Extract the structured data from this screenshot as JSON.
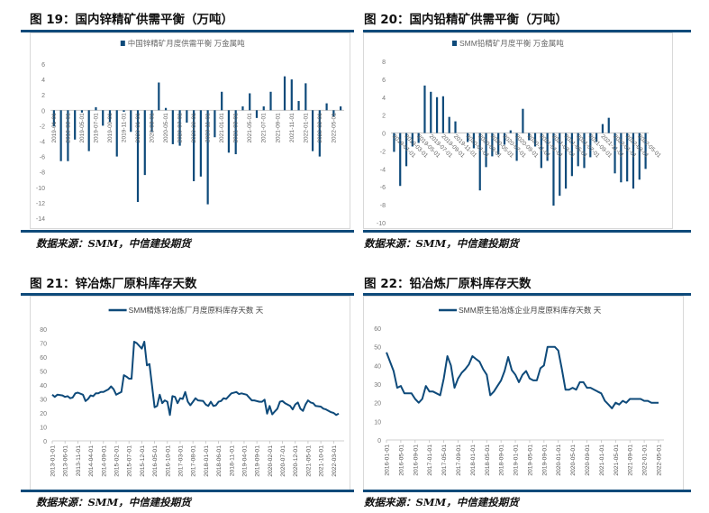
{
  "colors": {
    "series": "#0e4a7a",
    "rule": "#0e4a7a",
    "axis_text": "#777777",
    "legend_text": "#666666"
  },
  "figures": [
    {
      "title": "图 19：国内锌精矿供需平衡（万吨）",
      "source": "数据来源：SMM，中信建投期货"
    },
    {
      "title": "图 20：国内铅精矿供需平衡（万吨）",
      "source": "数据来源：SMM，中信建投期货"
    },
    {
      "title": "图 21：锌冶炼厂原料库存天数",
      "source": "数据来源：SMM，中信建投期货"
    },
    {
      "title": "图 22：铅冶炼厂原料库存天数",
      "source": "数据来源：SMM，中信建投期货"
    }
  ],
  "chart_data": [
    {
      "type": "bar",
      "legend": "中国锌精矿月度供需平衡 万金属吨",
      "ylim": [
        -14,
        6
      ],
      "yticks": [
        6,
        4,
        2,
        0,
        -2,
        -4,
        -6,
        -8,
        -10,
        -12,
        -14
      ],
      "grid": false,
      "categories": [
        "2019-01-01",
        "2019-02-01",
        "2019-03-01",
        "2019-04-01",
        "2019-05-01",
        "2019-06-01",
        "2019-07-01",
        "2019-08-01",
        "2019-09-01",
        "2019-10-01",
        "2019-11-01",
        "2019-12-01",
        "2020-01-01",
        "2020-02-01",
        "2020-03-01",
        "2020-04-01",
        "2020-05-01",
        "2020-06-01",
        "2020-07-01",
        "2020-08-01",
        "2020-09-01",
        "2020-10-01",
        "2020-11-01",
        "2020-12-01",
        "2021-01-01",
        "2021-02-01",
        "2021-03-01",
        "2021-04-01",
        "2021-05-01",
        "2021-06-01",
        "2021-07-01",
        "2021-08-01",
        "2021-09-01",
        "2021-10-01",
        "2021-11-01",
        "2021-12-01",
        "2022-01-01",
        "2022-02-01",
        "2022-03-01",
        "2022-04-01",
        "2022-05-01",
        "2022-06-01"
      ],
      "values": [
        -2.1,
        -6.6,
        -6.6,
        -3.8,
        -0.3,
        -5.3,
        0.4,
        -2.0,
        -1.5,
        -6.0,
        -0.2,
        -2.8,
        -11.9,
        -8.4,
        -2.8,
        3.6,
        0.3,
        -4.4,
        -4.6,
        -1.6,
        -9.2,
        -8.6,
        -12.2,
        -3.5,
        2.4,
        -5.5,
        -5.7,
        0.5,
        2.2,
        -1.0,
        0.5,
        2.4,
        0,
        4.4,
        4.0,
        1.2,
        3.5,
        -5.3,
        -6.0,
        0.9,
        -0.8,
        0.5
      ]
    },
    {
      "type": "bar",
      "legend": "SMM铅精矿月度平衡 万金属吨",
      "ylim": [
        -10,
        8
      ],
      "yticks": [
        8,
        6,
        4,
        2,
        0,
        -2,
        -4,
        -6,
        -8,
        -10
      ],
      "grid": false,
      "categories": [
        "2019-01-01",
        "2019-02-01",
        "2019-03-01",
        "2019-04-01",
        "2019-05-01",
        "2019-06-01",
        "2019-07-01",
        "2019-08-01",
        "2019-09-01",
        "2019-10-01",
        "2019-11-01",
        "2019-12-01",
        "2020-01-01",
        "2020-02-01",
        "2020-03-01",
        "2020-04-01",
        "2020-05-01",
        "2020-06-01",
        "2020-07-01",
        "2020-08-01",
        "2020-09-01",
        "2020-10-01",
        "2020-11-01",
        "2020-12-01",
        "2021-01-01",
        "2021-02-01",
        "2021-03-01",
        "2021-04-01",
        "2021-05-01",
        "2021-06-01",
        "2021-07-01",
        "2021-08-01",
        "2021-09-01",
        "2021-10-01",
        "2021-11-01",
        "2021-12-01",
        "2022-01-01",
        "2022-02-01",
        "2022-03-01",
        "2022-04-01",
        "2022-05-01",
        "2022-06-01"
      ],
      "values": [
        -2.1,
        -5.9,
        -3.7,
        -1.5,
        -1.1,
        5.3,
        4.6,
        4.0,
        4.1,
        1.8,
        1.3,
        0,
        -1.0,
        -1.7,
        -6.4,
        -3.8,
        -2.6,
        -2.4,
        -1.3,
        0.3,
        -3.1,
        2.7,
        -0.8,
        -1.5,
        -3.9,
        -3.1,
        -8.1,
        -7.0,
        -6.2,
        -4.8,
        -3.7,
        -3.9,
        -2.7,
        -1.0,
        1.0,
        1.7,
        -4.5,
        -5.5,
        -5.4,
        -6.2,
        -5.2,
        -4.0
      ]
    },
    {
      "type": "line",
      "legend": "SMM精炼锌冶炼厂月度原料库存天数 天",
      "ylim": [
        0,
        80
      ],
      "yticks": [
        80,
        70,
        60,
        50,
        40,
        30,
        20,
        10,
        0
      ],
      "grid": false,
      "x_start": "2013-01",
      "x_end": "2022-05",
      "tick_step_months": 5,
      "xticks": [
        "2013-01-01",
        "2013-06-01",
        "2013-11-01",
        "2014-04-01",
        "2014-09-01",
        "2015-02-01",
        "2015-07-01",
        "2015-12-01",
        "2016-05-01",
        "2016-10-01",
        "2017-03-01",
        "2017-08-01",
        "2018-01-01",
        "2018-06-01",
        "2018-11-01",
        "2019-04-01",
        "2019-09-01",
        "2020-02-01",
        "2020-07-01",
        "2020-12-01",
        "2021-05-01",
        "2021-10-01",
        "2022-03-01"
      ],
      "points": [
        [
          "2013-01",
          33
        ],
        [
          "2013-02",
          31.5
        ],
        [
          "2013-03",
          33
        ],
        [
          "2013-05",
          32.5
        ],
        [
          "2013-06",
          31.5
        ],
        [
          "2013-07",
          32
        ],
        [
          "2013-08",
          30.5
        ],
        [
          "2013-09",
          31
        ],
        [
          "2013-10",
          34
        ],
        [
          "2013-11",
          34.5
        ],
        [
          "2014-01",
          33
        ],
        [
          "2014-02",
          28.5
        ],
        [
          "2014-03",
          30
        ],
        [
          "2014-04",
          32.5
        ],
        [
          "2014-05",
          32
        ],
        [
          "2014-06",
          34
        ],
        [
          "2014-07",
          34
        ],
        [
          "2014-08",
          35
        ],
        [
          "2014-09",
          35
        ],
        [
          "2014-11",
          37
        ],
        [
          "2014-12",
          39
        ],
        [
          "2015-01",
          37
        ],
        [
          "2015-02",
          33
        ],
        [
          "2015-04",
          35
        ],
        [
          "2015-05",
          47
        ],
        [
          "2015-06",
          46
        ],
        [
          "2015-07",
          44.5
        ],
        [
          "2015-08",
          44.5
        ],
        [
          "2015-09",
          71
        ],
        [
          "2015-10",
          70
        ],
        [
          "2015-12",
          66
        ],
        [
          "2016-01",
          71
        ],
        [
          "2016-02",
          54
        ],
        [
          "2016-03",
          55
        ],
        [
          "2016-05",
          24
        ],
        [
          "2016-06",
          25
        ],
        [
          "2016-07",
          33
        ],
        [
          "2016-08",
          27
        ],
        [
          "2016-09",
          29
        ],
        [
          "2016-10",
          28
        ],
        [
          "2016-11",
          18.5
        ],
        [
          "2016-12",
          32
        ],
        [
          "2017-01",
          31.5
        ],
        [
          "2017-02",
          27
        ],
        [
          "2017-03",
          30.5
        ],
        [
          "2017-04",
          30
        ],
        [
          "2017-05",
          35
        ],
        [
          "2017-06",
          28
        ],
        [
          "2017-07",
          25.5
        ],
        [
          "2017-08",
          28
        ],
        [
          "2017-09",
          30.5
        ],
        [
          "2017-10",
          29
        ],
        [
          "2017-12",
          28.5
        ],
        [
          "2018-01",
          26
        ],
        [
          "2018-02",
          25
        ],
        [
          "2018-03",
          28
        ],
        [
          "2018-04",
          25
        ],
        [
          "2018-05",
          25.5
        ],
        [
          "2018-06",
          28
        ],
        [
          "2018-07",
          28.5
        ],
        [
          "2018-08",
          30.5
        ],
        [
          "2018-09",
          30
        ],
        [
          "2018-10",
          32
        ],
        [
          "2018-11",
          34
        ],
        [
          "2019-01",
          35
        ],
        [
          "2019-02",
          33.5
        ],
        [
          "2019-03",
          34
        ],
        [
          "2019-05",
          33
        ],
        [
          "2019-06",
          31
        ],
        [
          "2019-07",
          29
        ],
        [
          "2019-08",
          29
        ],
        [
          "2019-10",
          28
        ],
        [
          "2019-11",
          28
        ],
        [
          "2019-12",
          29.5
        ],
        [
          "2020-01",
          19.5
        ],
        [
          "2020-02",
          25
        ],
        [
          "2020-03",
          19
        ],
        [
          "2020-04",
          21
        ],
        [
          "2020-05",
          23
        ],
        [
          "2020-06",
          28
        ],
        [
          "2020-07",
          28.5
        ],
        [
          "2020-08",
          27
        ],
        [
          "2020-10",
          25
        ],
        [
          "2020-11",
          22.5
        ],
        [
          "2020-12",
          26
        ],
        [
          "2021-01",
          27.5
        ],
        [
          "2021-02",
          23
        ],
        [
          "2021-03",
          21.5
        ],
        [
          "2021-04",
          26
        ],
        [
          "2021-05",
          29
        ],
        [
          "2021-06",
          27.5
        ],
        [
          "2021-07",
          27
        ],
        [
          "2021-08",
          25
        ],
        [
          "2021-10",
          24.5
        ],
        [
          "2021-11",
          23
        ],
        [
          "2021-12",
          22.5
        ],
        [
          "2022-02",
          20.5
        ],
        [
          "2022-03",
          20
        ],
        [
          "2022-04",
          18.5
        ],
        [
          "2022-05",
          19.5
        ]
      ]
    },
    {
      "type": "line",
      "legend": "SMM原生铅冶炼企业月度原料库存天数 天",
      "ylim": [
        0,
        60
      ],
      "yticks": [
        60,
        50,
        40,
        30,
        20,
        10,
        0
      ],
      "grid": false,
      "x_start": "2016-01",
      "x_end": "2022-05",
      "tick_step_months": 4,
      "xticks": [
        "2016-01-01",
        "2016-05-01",
        "2016-09-01",
        "2017-01-01",
        "2017-05-01",
        "2017-09-01",
        "2018-01-01",
        "2018-05-01",
        "2018-09-01",
        "2019-01-01",
        "2019-05-01",
        "2019-09-01",
        "2020-01-01",
        "2020-05-01",
        "2020-09-01",
        "2021-01-01",
        "2021-05-01",
        "2021-09-01",
        "2022-01-01",
        "2022-05-01"
      ],
      "points": [
        [
          "2016-01",
          47
        ],
        [
          "2016-03",
          37
        ],
        [
          "2016-04",
          28
        ],
        [
          "2016-05",
          29
        ],
        [
          "2016-06",
          25
        ],
        [
          "2016-08",
          25
        ],
        [
          "2016-09",
          22
        ],
        [
          "2016-10",
          20
        ],
        [
          "2016-11",
          22
        ],
        [
          "2016-12",
          29
        ],
        [
          "2017-01",
          26
        ],
        [
          "2017-02",
          26
        ],
        [
          "2017-04",
          24
        ],
        [
          "2017-05",
          33
        ],
        [
          "2017-06",
          45
        ],
        [
          "2017-07",
          40
        ],
        [
          "2017-08",
          28
        ],
        [
          "2017-09",
          33
        ],
        [
          "2017-10",
          36
        ],
        [
          "2017-11",
          38
        ],
        [
          "2017-12",
          40.5
        ],
        [
          "2018-01",
          45
        ],
        [
          "2018-02",
          43.5
        ],
        [
          "2018-03",
          42
        ],
        [
          "2018-04",
          38
        ],
        [
          "2018-05",
          35
        ],
        [
          "2018-06",
          24
        ],
        [
          "2018-07",
          26
        ],
        [
          "2018-08",
          29
        ],
        [
          "2018-09",
          32
        ],
        [
          "2018-10",
          37
        ],
        [
          "2018-11",
          44.5
        ],
        [
          "2018-12",
          37.5
        ],
        [
          "2019-01",
          35
        ],
        [
          "2019-02",
          31
        ],
        [
          "2019-03",
          35
        ],
        [
          "2019-04",
          37
        ],
        [
          "2019-05",
          33
        ],
        [
          "2019-06",
          32
        ],
        [
          "2019-07",
          32
        ],
        [
          "2019-08",
          38.5
        ],
        [
          "2019-09",
          40
        ],
        [
          "2019-10",
          50
        ],
        [
          "2019-12",
          50
        ],
        [
          "2020-01",
          48
        ],
        [
          "2020-02",
          38
        ],
        [
          "2020-03",
          27
        ],
        [
          "2020-04",
          27
        ],
        [
          "2020-05",
          28
        ],
        [
          "2020-06",
          27
        ],
        [
          "2020-07",
          31
        ],
        [
          "2020-08",
          31
        ],
        [
          "2020-09",
          28
        ],
        [
          "2020-10",
          28
        ],
        [
          "2020-11",
          27
        ],
        [
          "2020-12",
          26
        ],
        [
          "2021-01",
          25
        ],
        [
          "2021-02",
          21
        ],
        [
          "2021-03",
          19
        ],
        [
          "2021-04",
          17
        ],
        [
          "2021-05",
          20
        ],
        [
          "2021-06",
          19
        ],
        [
          "2021-07",
          21
        ],
        [
          "2021-08",
          20
        ],
        [
          "2021-09",
          22
        ],
        [
          "2021-12",
          22
        ],
        [
          "2022-01",
          21
        ],
        [
          "2022-02",
          21
        ],
        [
          "2022-03",
          20
        ],
        [
          "2022-05",
          20
        ]
      ]
    }
  ]
}
